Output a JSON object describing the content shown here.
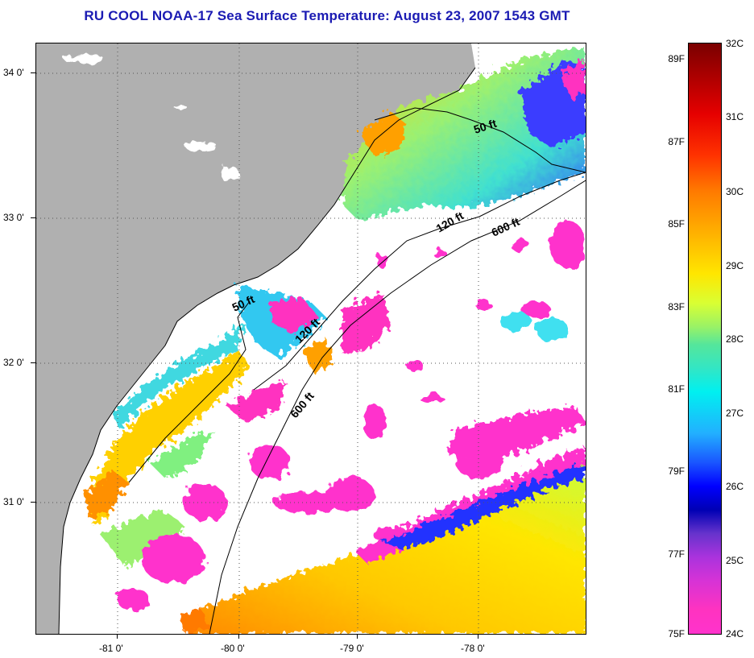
{
  "title": "RU COOL  NOAA-17  Sea Surface Temperature:  August 23, 2007 1543 GMT",
  "map": {
    "lat_labels": [
      "34 0'",
      "33 0'",
      "32 0'",
      "31 0'"
    ],
    "lon_labels": [
      "-81 0'",
      "-80 0'",
      "-79 0'",
      "-78 0'"
    ],
    "contours": [
      {
        "label": "50 ft"
      },
      {
        "label": "120 ft"
      },
      {
        "label": "600 ft"
      },
      {
        "label": "50 ft"
      },
      {
        "label": "120 ft"
      },
      {
        "label": "600 ft"
      }
    ],
    "colors": {
      "land": "#b0b0b0",
      "cloud": "#ffffff",
      "gridline": "#444444"
    }
  },
  "colorbar": {
    "fahrenheit": [
      "89F",
      "87F",
      "85F",
      "83F",
      "81F",
      "79F",
      "77F",
      "75F"
    ],
    "celsius": [
      "32C",
      "31C",
      "30C",
      "29C",
      "28C",
      "27C",
      "26C",
      "25C",
      "24C"
    ]
  }
}
